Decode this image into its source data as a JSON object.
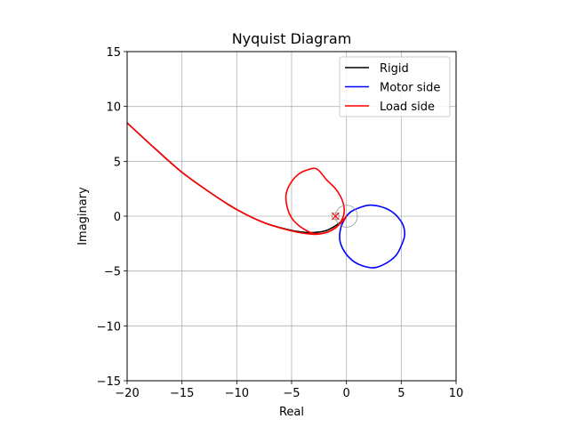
{
  "chart_data": {
    "type": "line",
    "title": "Nyquist Diagram",
    "xlabel": "Real",
    "ylabel": "Imaginary",
    "xlim": [
      -20,
      10
    ],
    "ylim": [
      -15,
      15
    ],
    "xticks": [
      -20,
      -15,
      -10,
      -5,
      0,
      5,
      10
    ],
    "yticks": [
      -15,
      -10,
      -5,
      0,
      5,
      10,
      15
    ],
    "xtick_labels": [
      "−20",
      "−15",
      "−10",
      "−5",
      "0",
      "5",
      "10"
    ],
    "ytick_labels": [
      "−15",
      "−10",
      "−5",
      "0",
      "5",
      "10",
      "15"
    ],
    "grid": true,
    "legend_position": "top-right",
    "critical_point": [
      -1,
      0
    ],
    "critical_marker": "x",
    "series": [
      {
        "name": "Rigid",
        "color": "#000000",
        "x": [
          -20,
          -17.5,
          -15,
          -12.5,
          -10,
          -7.5,
          -5,
          -3.5,
          -2.5,
          -1.8,
          -1.2,
          -0.6,
          -0.2,
          0
        ],
        "y": [
          8.5,
          6.2,
          4.0,
          2.2,
          0.6,
          -0.6,
          -1.3,
          -1.5,
          -1.45,
          -1.3,
          -1.0,
          -0.6,
          -0.25,
          0
        ]
      },
      {
        "name": "Motor side",
        "color": "#0000ff",
        "x": [
          0,
          0.4,
          1.0,
          2.0,
          3.0,
          4.0,
          4.7,
          5.2,
          5.3,
          5.0,
          4.5,
          3.6,
          2.5,
          1.4,
          0.5,
          -0.2,
          -0.6,
          -0.5,
          0
        ],
        "y": [
          0,
          0.4,
          0.7,
          1.0,
          0.9,
          0.5,
          -0.1,
          -0.9,
          -1.8,
          -2.7,
          -3.6,
          -4.3,
          -4.7,
          -4.5,
          -4.0,
          -3.2,
          -2.2,
          -1.0,
          0
        ]
      },
      {
        "name": "Load side",
        "color": "#ff0000",
        "x": [
          -20,
          -17.5,
          -15,
          -12.5,
          -10,
          -7.5,
          -5,
          -3.6,
          -2.7,
          -1.7,
          -0.9,
          -0.4,
          -0.2,
          -0.4,
          -1.0,
          -1.8,
          -2.7,
          -3.6,
          -4.4,
          -5.1,
          -5.5,
          -5.4,
          -4.9,
          -4.0,
          -2.9,
          -1.6,
          -0.7,
          -0.2,
          0
        ],
        "y": [
          8.5,
          6.2,
          4.0,
          2.2,
          0.6,
          -0.6,
          -1.35,
          -1.6,
          -1.65,
          -1.45,
          -1.0,
          -0.3,
          0.5,
          1.5,
          2.5,
          3.3,
          4.3,
          4.2,
          3.8,
          3.0,
          2.0,
          0.8,
          -0.3,
          -1.1,
          -1.6,
          -1.4,
          -0.8,
          -0.3,
          0
        ]
      }
    ]
  }
}
